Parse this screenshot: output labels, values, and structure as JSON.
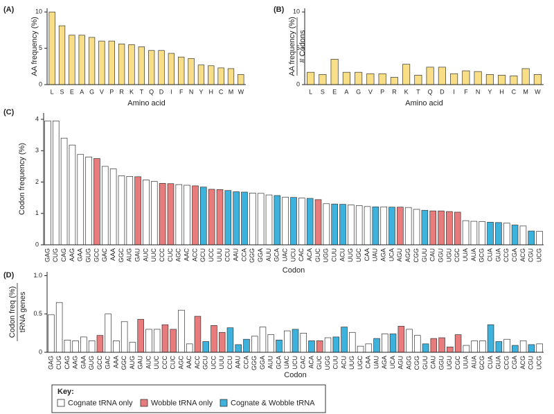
{
  "chart_data": [
    {
      "type": "bar",
      "panel": "(A)",
      "ylabel": [
        "AA frequency (%)"
      ],
      "xlabel": "Amino acid",
      "categories": [
        "L",
        "S",
        "E",
        "A",
        "G",
        "V",
        "P",
        "R",
        "K",
        "T",
        "Q",
        "D",
        "I",
        "F",
        "N",
        "Y",
        "H",
        "C",
        "M",
        "W"
      ],
      "values": [
        10,
        8.1,
        6.8,
        6.8,
        6.5,
        6.0,
        6.0,
        5.6,
        5.5,
        5.2,
        4.7,
        4.7,
        4.3,
        3.8,
        3.6,
        2.7,
        2.6,
        2.3,
        2.2,
        1.4
      ],
      "color": "#f8df87",
      "ylim": [
        0,
        10.5
      ],
      "yticks": [
        0,
        5,
        10
      ]
    },
    {
      "type": "bar",
      "panel": "(B)",
      "ylabel": [
        "AA frequency (%)",
        "# Codons"
      ],
      "xlabel": "Amino acid",
      "categories": [
        "L",
        "S",
        "E",
        "A",
        "G",
        "V",
        "P",
        "R",
        "K",
        "T",
        "Q",
        "D",
        "I",
        "F",
        "N",
        "Y",
        "H",
        "C",
        "M",
        "W"
      ],
      "values": [
        1.7,
        1.4,
        3.5,
        1.7,
        1.7,
        1.5,
        1.5,
        1.0,
        2.8,
        1.3,
        2.4,
        2.4,
        1.5,
        1.9,
        1.8,
        1.4,
        1.3,
        1.2,
        2.2,
        1.4
      ],
      "color": "#f8df87",
      "ylim": [
        0,
        10.5
      ],
      "yticks": [
        0,
        5,
        10
      ]
    },
    {
      "type": "bar",
      "panel": "(C)",
      "ylabel": [
        "Codon frequency (%)"
      ],
      "xlabel": "Codon",
      "categories": [
        "GAG",
        "CUG",
        "CAG",
        "AAG",
        "GAA",
        "GUG",
        "GCC",
        "GAC",
        "AAA",
        "GGC",
        "AUG",
        "GAU",
        "AUC",
        "UUC",
        "CCC",
        "CUC",
        "AGC",
        "AAC",
        "ACC",
        "GCU",
        "UCC",
        "UUU",
        "CCU",
        "AAU",
        "CCA",
        "GGG",
        "GGA",
        "AUU",
        "GCA",
        "UAC",
        "UCU",
        "CAC",
        "ACA",
        "GUC",
        "UGG",
        "CUU",
        "ACU",
        "UUG",
        "UGC",
        "CAA",
        "UAU",
        "AGA",
        "UCA",
        "AGU",
        "AGG",
        "CGG",
        "GUU",
        "CAU",
        "GGU",
        "UGU",
        "CGC",
        "UUA",
        "AUA",
        "GCG",
        "CUA",
        "GUA",
        "CCG",
        "CGA",
        "ACG",
        "CGU",
        "UCG"
      ],
      "values": [
        3.95,
        3.95,
        3.4,
        3.18,
        2.88,
        2.8,
        2.75,
        2.5,
        2.42,
        2.2,
        2.18,
        2.17,
        2.07,
        2.02,
        1.96,
        1.95,
        1.92,
        1.9,
        1.88,
        1.84,
        1.77,
        1.76,
        1.73,
        1.69,
        1.68,
        1.65,
        1.64,
        1.59,
        1.57,
        1.52,
        1.51,
        1.49,
        1.48,
        1.44,
        1.31,
        1.3,
        1.29,
        1.27,
        1.25,
        1.22,
        1.21,
        1.21,
        1.2,
        1.2,
        1.19,
        1.13,
        1.1,
        1.08,
        1.08,
        1.06,
        1.04,
        0.77,
        0.75,
        0.74,
        0.72,
        0.71,
        0.69,
        0.63,
        0.6,
        0.44,
        0.43
      ],
      "bar_colors": [
        "#ffffff",
        "#ffffff",
        "#ffffff",
        "#ffffff",
        "#ffffff",
        "#ffffff",
        "#e87b7b",
        "#ffffff",
        "#ffffff",
        "#ffffff",
        "#ffffff",
        "#e87b7b",
        "#ffffff",
        "#ffffff",
        "#e87b7b",
        "#e87b7b",
        "#ffffff",
        "#ffffff",
        "#e87b7b",
        "#3db2dc",
        "#e87b7b",
        "#e87b7b",
        "#3db2dc",
        "#3db2dc",
        "#3db2dc",
        "#ffffff",
        "#ffffff",
        "#ffffff",
        "#3db2dc",
        "#ffffff",
        "#3db2dc",
        "#ffffff",
        "#3db2dc",
        "#e87b7b",
        "#ffffff",
        "#3db2dc",
        "#3db2dc",
        "#ffffff",
        "#ffffff",
        "#ffffff",
        "#3db2dc",
        "#ffffff",
        "#3db2dc",
        "#e87b7b",
        "#ffffff",
        "#ffffff",
        "#3db2dc",
        "#e87b7b",
        "#e87b7b",
        "#e87b7b",
        "#e87b7b",
        "#ffffff",
        "#ffffff",
        "#ffffff",
        "#3db2dc",
        "#3db2dc",
        "#ffffff",
        "#3db2dc",
        "#ffffff",
        "#3db2dc",
        "#ffffff"
      ],
      "ylim": [
        0,
        4.2
      ],
      "yticks": [
        0,
        1,
        2,
        3,
        4
      ]
    },
    {
      "type": "bar",
      "panel": "(D)",
      "ylabel": [
        "Codon freq (%)",
        "tRNA genes"
      ],
      "xlabel": "Codon",
      "categories": [
        "GAG",
        "CUG",
        "CAG",
        "AAG",
        "GAA",
        "GUG",
        "GCC",
        "GAC",
        "AAA",
        "GGC",
        "AUG",
        "GAU",
        "AUC",
        "UUC",
        "CCC",
        "CUC",
        "AGC",
        "AAC",
        "ACC",
        "GCU",
        "UCC",
        "UUU",
        "CCU",
        "AAU",
        "CCA",
        "GGG",
        "GGA",
        "AUU",
        "GCA",
        "UAC",
        "UCU",
        "CAC",
        "ACA",
        "GUC",
        "UGG",
        "CUU",
        "ACU",
        "UUG",
        "UGC",
        "CAA",
        "UAU",
        "AGA",
        "UCA",
        "AGU",
        "AGG",
        "CGG",
        "GUU",
        "CAU",
        "GGU",
        "UGU",
        "CGC",
        "UUA",
        "AUA",
        "GCG",
        "CUA",
        "GUA",
        "CCG",
        "CGA",
        "ACG",
        "CGU",
        "UCG"
      ],
      "values": [
        0.49,
        0.65,
        0.16,
        0.15,
        0.2,
        0.15,
        0.22,
        0.5,
        0.15,
        0.4,
        0.13,
        0.43,
        0.3,
        0.3,
        0.36,
        0.3,
        0.55,
        0.11,
        0.47,
        0.14,
        0.35,
        0.26,
        0.32,
        0.1,
        0.17,
        0.21,
        0.33,
        0.23,
        0.16,
        0.28,
        0.3,
        0.25,
        0.15,
        0.15,
        0.19,
        0.2,
        0.33,
        0.26,
        0.08,
        0.11,
        0.18,
        0.24,
        0.24,
        0.34,
        0.3,
        0.22,
        0.11,
        0.18,
        0.19,
        0.07,
        0.23,
        0.09,
        0.15,
        0.15,
        0.36,
        0.14,
        0.17,
        0.09,
        0.15,
        0.1,
        0.11
      ],
      "bar_colors": [
        "#ffffff",
        "#ffffff",
        "#ffffff",
        "#ffffff",
        "#ffffff",
        "#ffffff",
        "#e87b7b",
        "#ffffff",
        "#ffffff",
        "#ffffff",
        "#ffffff",
        "#e87b7b",
        "#ffffff",
        "#ffffff",
        "#e87b7b",
        "#e87b7b",
        "#ffffff",
        "#ffffff",
        "#e87b7b",
        "#3db2dc",
        "#e87b7b",
        "#e87b7b",
        "#3db2dc",
        "#3db2dc",
        "#3db2dc",
        "#ffffff",
        "#ffffff",
        "#ffffff",
        "#3db2dc",
        "#ffffff",
        "#3db2dc",
        "#ffffff",
        "#3db2dc",
        "#e87b7b",
        "#ffffff",
        "#3db2dc",
        "#3db2dc",
        "#ffffff",
        "#ffffff",
        "#ffffff",
        "#3db2dc",
        "#ffffff",
        "#3db2dc",
        "#e87b7b",
        "#ffffff",
        "#ffffff",
        "#3db2dc",
        "#e87b7b",
        "#e87b7b",
        "#e87b7b",
        "#e87b7b",
        "#ffffff",
        "#ffffff",
        "#ffffff",
        "#3db2dc",
        "#3db2dc",
        "#ffffff",
        "#3db2dc",
        "#ffffff",
        "#3db2dc",
        "#ffffff"
      ],
      "ylim": [
        0,
        1.05
      ],
      "yticks": [
        0,
        0.5,
        {
          "value": 1,
          "label": "1.0"
        }
      ]
    }
  ],
  "key": {
    "title": "Key:",
    "items": [
      {
        "name": "Cognate tRNA only",
        "color": "#ffffff"
      },
      {
        "name": "Wobble tRNA only",
        "color": "#e87b7b"
      },
      {
        "name": "Cognate & Wobble tRNA",
        "color": "#3db2dc"
      }
    ]
  }
}
